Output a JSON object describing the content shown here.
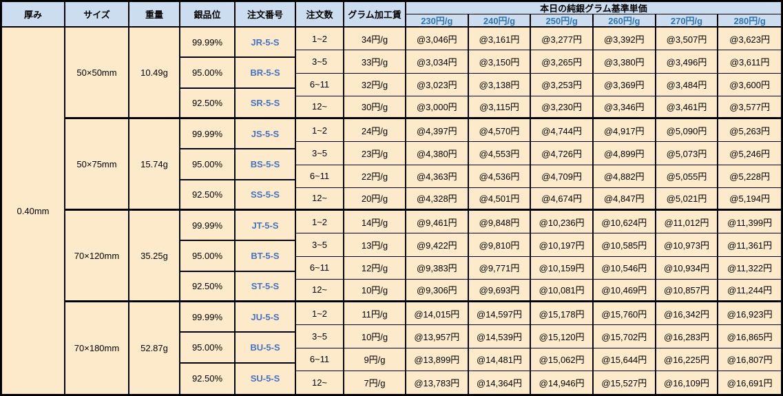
{
  "colors": {
    "border": "#000000",
    "header_bg": "#cbddef",
    "body_bg": "#fceaca",
    "price_header_text": "#2e75b6",
    "order_text": "#4472c4"
  },
  "header": {
    "columns": [
      "厚み",
      "サイズ",
      "重量",
      "銀品位",
      "注文番号",
      "注文数",
      "グラム加工賃"
    ],
    "price_group_title": "本日の純銀グラム基準単価",
    "price_columns": [
      "230円/g",
      "240円/g",
      "250円/g",
      "260円/g",
      "270円/g",
      "280円/g"
    ]
  },
  "thickness": "0.40mm",
  "blocks": [
    {
      "size": "50×50mm",
      "weight": "10.49g",
      "purities": [
        {
          "purity": "99.99%",
          "order_no": "JR-5-S"
        },
        {
          "purity": "95.00%",
          "order_no": "BR-5-S"
        },
        {
          "purity": "92.50%",
          "order_no": "SR-5-S"
        }
      ],
      "rows": [
        {
          "qty": "1~2",
          "fee": "34円/g",
          "prices": [
            "@3,046円",
            "@3,161円",
            "@3,277円",
            "@3,392円",
            "@3,507円",
            "@3,623円"
          ]
        },
        {
          "qty": "3~5",
          "fee": "33円/g",
          "prices": [
            "@3,034円",
            "@3,150円",
            "@3,265円",
            "@3,380円",
            "@3,496円",
            "@3,611円"
          ]
        },
        {
          "qty": "6~11",
          "fee": "32円/g",
          "prices": [
            "@3,023円",
            "@3,138円",
            "@3,253円",
            "@3,369円",
            "@3,484円",
            "@3,600円"
          ]
        },
        {
          "qty": "12~",
          "fee": "30円/g",
          "prices": [
            "@3,000円",
            "@3,115円",
            "@3,230円",
            "@3,346円",
            "@3,461円",
            "@3,577円"
          ]
        }
      ]
    },
    {
      "size": "50×75mm",
      "weight": "15.74g",
      "purities": [
        {
          "purity": "99.99%",
          "order_no": "JS-5-S"
        },
        {
          "purity": "95.00%",
          "order_no": "BS-5-S"
        },
        {
          "purity": "92.50%",
          "order_no": "SS-5-S"
        }
      ],
      "rows": [
        {
          "qty": "1~2",
          "fee": "24円/g",
          "prices": [
            "@4,397円",
            "@4,570円",
            "@4,744円",
            "@4,917円",
            "@5,090円",
            "@5,263円"
          ]
        },
        {
          "qty": "3~5",
          "fee": "23円/g",
          "prices": [
            "@4,380円",
            "@4,553円",
            "@4,726円",
            "@4,899円",
            "@5,073円",
            "@5,246円"
          ]
        },
        {
          "qty": "6~11",
          "fee": "22円/g",
          "prices": [
            "@4,363円",
            "@4,536円",
            "@4,709円",
            "@4,882円",
            "@5,055円",
            "@5,228円"
          ]
        },
        {
          "qty": "12~",
          "fee": "20円/g",
          "prices": [
            "@4,328円",
            "@4,501円",
            "@4,674円",
            "@4,847円",
            "@5,021円",
            "@5,194円"
          ]
        }
      ]
    },
    {
      "size": "70×120mm",
      "weight": "35.25g",
      "purities": [
        {
          "purity": "99.99%",
          "order_no": "JT-5-S"
        },
        {
          "purity": "95.00%",
          "order_no": "BT-5-S"
        },
        {
          "purity": "92.50%",
          "order_no": "ST-5-S"
        }
      ],
      "rows": [
        {
          "qty": "1~2",
          "fee": "14円/g",
          "prices": [
            "@9,461円",
            "@9,848円",
            "@10,236円",
            "@10,624円",
            "@11,012円",
            "@11,399円"
          ]
        },
        {
          "qty": "3~5",
          "fee": "13円/g",
          "prices": [
            "@9,422円",
            "@9,810円",
            "@10,197円",
            "@10,585円",
            "@10,973円",
            "@11,361円"
          ]
        },
        {
          "qty": "6~11",
          "fee": "12円/g",
          "prices": [
            "@9,383円",
            "@9,771円",
            "@10,159円",
            "@10,546円",
            "@10,934円",
            "@11,322円"
          ]
        },
        {
          "qty": "12~",
          "fee": "10円/g",
          "prices": [
            "@9,306円",
            "@9,693円",
            "@10,081円",
            "@10,469円",
            "@10,857円",
            "@11,244円"
          ]
        }
      ]
    },
    {
      "size": "70×180mm",
      "weight": "52.87g",
      "purities": [
        {
          "purity": "99.99%",
          "order_no": "JU-5-S"
        },
        {
          "purity": "95.00%",
          "order_no": "BU-5-S"
        },
        {
          "purity": "92.50%",
          "order_no": "SU-5-S"
        }
      ],
      "rows": [
        {
          "qty": "1~2",
          "fee": "11円/g",
          "prices": [
            "@14,015円",
            "@14,597円",
            "@15,178円",
            "@15,760円",
            "@16,342円",
            "@16,923円"
          ]
        },
        {
          "qty": "3~5",
          "fee": "10円/g",
          "prices": [
            "@13,957円",
            "@14,539円",
            "@15,120円",
            "@15,702円",
            "@16,283円",
            "@16,865円"
          ]
        },
        {
          "qty": "6~11",
          "fee": "9円/g",
          "prices": [
            "@13,899円",
            "@14,481円",
            "@15,062円",
            "@15,644円",
            "@16,225円",
            "@16,807円"
          ]
        },
        {
          "qty": "12~",
          "fee": "7円/g",
          "prices": [
            "@13,783円",
            "@14,364円",
            "@14,946円",
            "@15,527円",
            "@16,109円",
            "@16,691円"
          ]
        }
      ]
    }
  ]
}
